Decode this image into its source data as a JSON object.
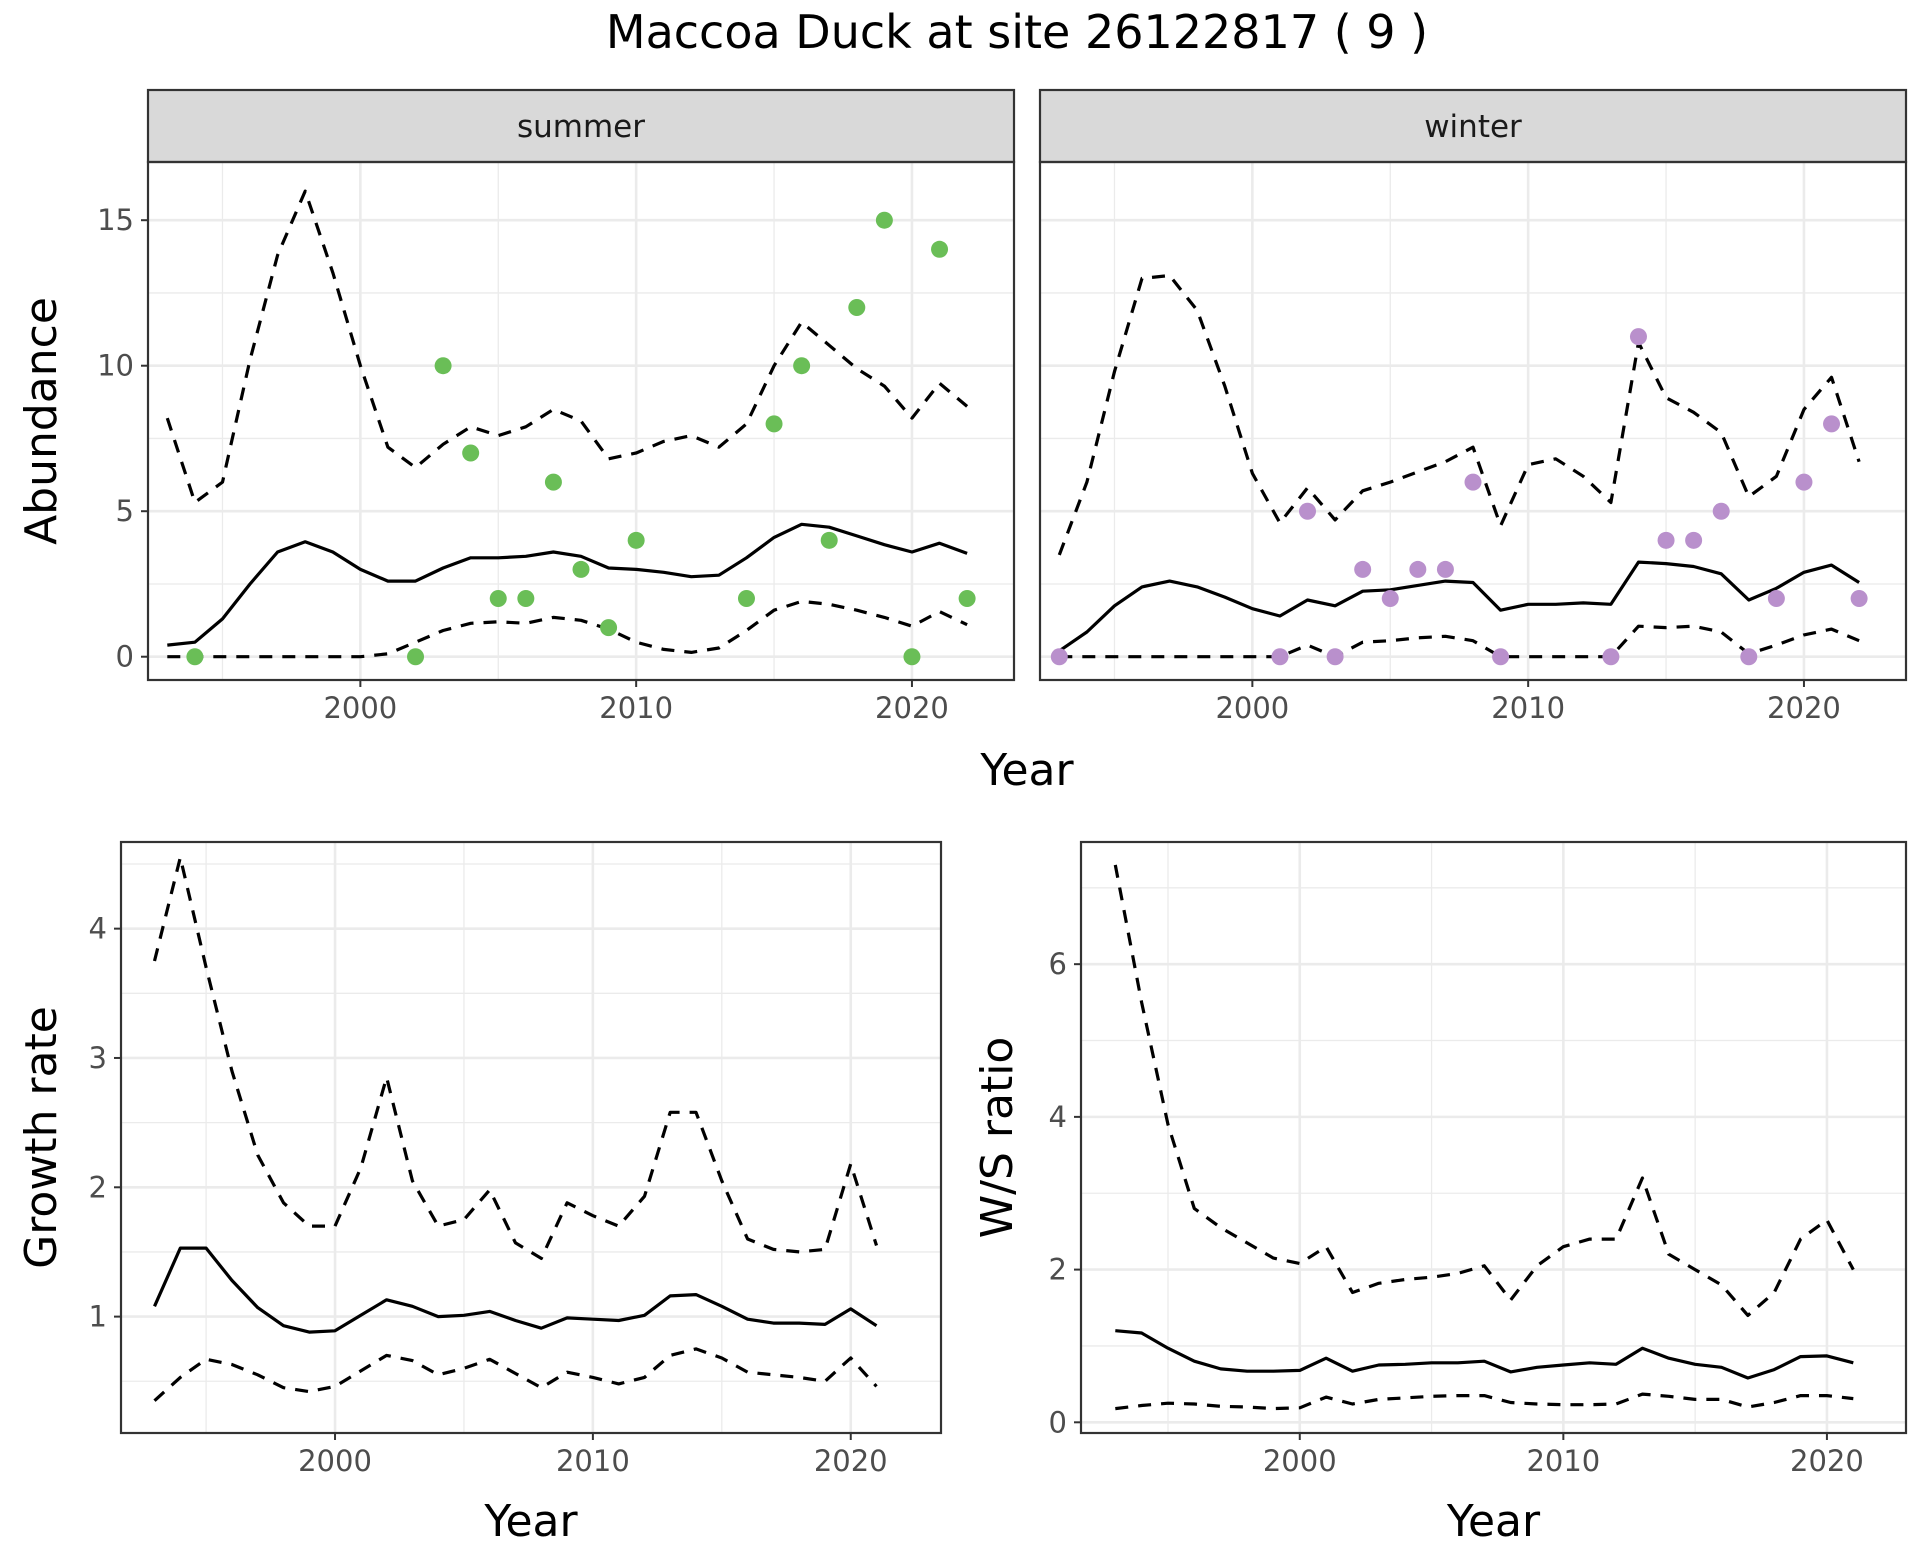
{
  "title": "Maccoa Duck at site 26122817 ( 9 )",
  "colors": {
    "summer_points": "#6abe57",
    "winter_points": "#b990cc",
    "lines": "#000000",
    "strip_fill": "#d9d9d9",
    "grid": "#ebebeb",
    "panel_border": "#333333"
  },
  "chart_data": [
    {
      "id": "abundance",
      "type": "line+scatter",
      "facets": [
        "summer",
        "winter"
      ],
      "xlabel": "Year",
      "ylabel": "Abundance",
      "xlim": [
        1992.3,
        2023.7
      ],
      "ylim": [
        -0.8,
        17
      ],
      "xticks": [
        2000,
        2010,
        2020
      ],
      "yticks": [
        0,
        5,
        10,
        15
      ],
      "panels": [
        {
          "facet": "summer",
          "x": [
            1993,
            1994,
            1995,
            1996,
            1997,
            1998,
            1999,
            2000,
            2001,
            2002,
            2003,
            2004,
            2005,
            2006,
            2007,
            2008,
            2009,
            2010,
            2011,
            2012,
            2013,
            2014,
            2015,
            2016,
            2017,
            2018,
            2019,
            2020,
            2021,
            2022
          ],
          "mean": [
            0.4,
            0.5,
            1.3,
            2.5,
            3.6,
            3.95,
            3.6,
            3.0,
            2.6,
            2.6,
            3.05,
            3.4,
            3.4,
            3.45,
            3.6,
            3.45,
            3.05,
            3.0,
            2.9,
            2.75,
            2.8,
            3.4,
            4.1,
            4.55,
            4.45,
            4.15,
            3.85,
            3.6,
            3.9,
            3.55
          ],
          "upper": [
            8.2,
            5.3,
            6.0,
            10.2,
            13.8,
            16.0,
            13.2,
            10.0,
            7.2,
            6.5,
            7.3,
            7.9,
            7.6,
            7.9,
            8.5,
            8.1,
            6.8,
            7.0,
            7.4,
            7.6,
            7.2,
            8.0,
            10.0,
            11.5,
            10.7,
            9.9,
            9.3,
            8.2,
            9.4,
            8.6
          ],
          "lower": [
            0,
            0,
            0,
            0,
            0,
            0,
            0,
            0,
            0.1,
            0.5,
            0.9,
            1.15,
            1.2,
            1.15,
            1.35,
            1.25,
            0.95,
            0.5,
            0.25,
            0.15,
            0.3,
            0.9,
            1.6,
            1.9,
            1.8,
            1.6,
            1.35,
            1.05,
            1.55,
            1.1
          ],
          "points": {
            "x": [
              1994,
              2002,
              2003,
              2004,
              2005,
              2006,
              2007,
              2008,
              2009,
              2010,
              2014,
              2015,
              2016,
              2017,
              2018,
              2019,
              2020,
              2021,
              2022
            ],
            "y": [
              0,
              0,
              10,
              7,
              2,
              2,
              6,
              3,
              1,
              4,
              2,
              8,
              10,
              4,
              12,
              15,
              0,
              14,
              2
            ]
          }
        },
        {
          "facet": "winter",
          "x": [
            1993,
            1994,
            1995,
            1996,
            1997,
            1998,
            1999,
            2000,
            2001,
            2002,
            2003,
            2004,
            2005,
            2006,
            2007,
            2008,
            2009,
            2010,
            2011,
            2012,
            2013,
            2014,
            2015,
            2016,
            2017,
            2018,
            2019,
            2020,
            2021,
            2022
          ],
          "mean": [
            0.2,
            0.85,
            1.75,
            2.4,
            2.6,
            2.4,
            2.05,
            1.65,
            1.4,
            1.95,
            1.75,
            2.25,
            2.3,
            2.45,
            2.6,
            2.55,
            1.6,
            1.8,
            1.8,
            1.85,
            1.8,
            3.25,
            3.2,
            3.1,
            2.85,
            1.95,
            2.35,
            2.9,
            3.15,
            2.55
          ],
          "upper": [
            3.5,
            6.0,
            9.8,
            13.0,
            13.1,
            11.9,
            9.3,
            6.3,
            4.6,
            5.8,
            4.7,
            5.7,
            6.0,
            6.35,
            6.7,
            7.2,
            4.5,
            6.6,
            6.8,
            6.2,
            5.3,
            10.8,
            8.9,
            8.4,
            7.7,
            5.5,
            6.2,
            8.5,
            9.6,
            6.7
          ],
          "lower": [
            0,
            0,
            0,
            0,
            0,
            0,
            0,
            0,
            0,
            0.4,
            0,
            0.5,
            0.55,
            0.65,
            0.7,
            0.55,
            0,
            0,
            0,
            0,
            0,
            1.05,
            1.0,
            1.05,
            0.85,
            0.1,
            0.4,
            0.75,
            0.95,
            0.55
          ],
          "points": {
            "x": [
              1993,
              2001,
              2002,
              2003,
              2004,
              2005,
              2006,
              2007,
              2008,
              2009,
              2013,
              2014,
              2015,
              2016,
              2017,
              2018,
              2019,
              2020,
              2021,
              2022
            ],
            "y": [
              0,
              0,
              5,
              0,
              3,
              2,
              3,
              3,
              6,
              0,
              0,
              11,
              4,
              4,
              5,
              0,
              2,
              6,
              8,
              2
            ]
          }
        }
      ]
    },
    {
      "id": "growth",
      "type": "line",
      "xlabel": "Year",
      "ylabel": "Growth rate",
      "xlim": [
        1991.7,
        2023.5
      ],
      "ylim": [
        0.1,
        4.67
      ],
      "xticks": [
        2000,
        2010,
        2020
      ],
      "yticks": [
        1,
        2,
        3,
        4
      ],
      "x": [
        1993,
        1994,
        1995,
        1996,
        1997,
        1998,
        1999,
        2000,
        2001,
        2002,
        2003,
        2004,
        2005,
        2006,
        2007,
        2008,
        2009,
        2010,
        2011,
        2012,
        2013,
        2014,
        2015,
        2016,
        2017,
        2018,
        2019,
        2020,
        2021
      ],
      "mean": [
        1.08,
        1.53,
        1.53,
        1.28,
        1.07,
        0.93,
        0.88,
        0.89,
        1.01,
        1.13,
        1.08,
        1.0,
        1.01,
        1.04,
        0.97,
        0.91,
        0.99,
        0.98,
        0.97,
        1.01,
        1.16,
        1.17,
        1.08,
        0.98,
        0.95,
        0.95,
        0.94,
        1.06,
        0.93
      ],
      "upper": [
        3.75,
        4.55,
        3.7,
        2.9,
        2.25,
        1.88,
        1.7,
        1.7,
        2.15,
        2.85,
        2.05,
        1.7,
        1.75,
        1.98,
        1.57,
        1.45,
        1.88,
        1.78,
        1.7,
        1.93,
        2.58,
        2.58,
        2.05,
        1.6,
        1.52,
        1.5,
        1.52,
        2.18,
        1.55
      ],
      "lower": [
        0.35,
        0.53,
        0.67,
        0.63,
        0.55,
        0.45,
        0.42,
        0.46,
        0.58,
        0.7,
        0.66,
        0.55,
        0.6,
        0.67,
        0.56,
        0.45,
        0.57,
        0.53,
        0.48,
        0.53,
        0.7,
        0.75,
        0.68,
        0.57,
        0.55,
        0.53,
        0.5,
        0.68,
        0.46
      ]
    },
    {
      "id": "ws_ratio",
      "type": "line",
      "xlabel": "Year",
      "ylabel": "W/S ratio",
      "xlim": [
        1991.7,
        2023.0
      ],
      "ylim": [
        -0.14,
        7.6
      ],
      "xticks": [
        2000,
        2010,
        2020
      ],
      "yticks": [
        0,
        2,
        4,
        6
      ],
      "x": [
        1993,
        1994,
        1995,
        1996,
        1997,
        1998,
        1999,
        2000,
        2001,
        2002,
        2003,
        2004,
        2005,
        2006,
        2007,
        2008,
        2009,
        2010,
        2011,
        2012,
        2013,
        2014,
        2015,
        2016,
        2017,
        2018,
        2019,
        2020,
        2021
      ],
      "mean": [
        1.2,
        1.17,
        0.97,
        0.8,
        0.7,
        0.67,
        0.67,
        0.68,
        0.84,
        0.67,
        0.75,
        0.76,
        0.78,
        0.78,
        0.8,
        0.66,
        0.72,
        0.75,
        0.78,
        0.76,
        0.97,
        0.84,
        0.76,
        0.72,
        0.58,
        0.69,
        0.86,
        0.87,
        0.78
      ],
      "upper": [
        7.3,
        5.5,
        3.9,
        2.8,
        2.55,
        2.35,
        2.15,
        2.08,
        2.3,
        1.7,
        1.82,
        1.87,
        1.9,
        1.95,
        2.05,
        1.6,
        2.05,
        2.3,
        2.4,
        2.4,
        3.2,
        2.2,
        2.0,
        1.8,
        1.4,
        1.7,
        2.4,
        2.65,
        2.0
      ],
      "lower": [
        0.18,
        0.22,
        0.25,
        0.24,
        0.21,
        0.2,
        0.18,
        0.19,
        0.33,
        0.24,
        0.3,
        0.32,
        0.34,
        0.35,
        0.35,
        0.26,
        0.24,
        0.23,
        0.23,
        0.24,
        0.37,
        0.34,
        0.3,
        0.3,
        0.2,
        0.26,
        0.35,
        0.35,
        0.31
      ]
    }
  ]
}
